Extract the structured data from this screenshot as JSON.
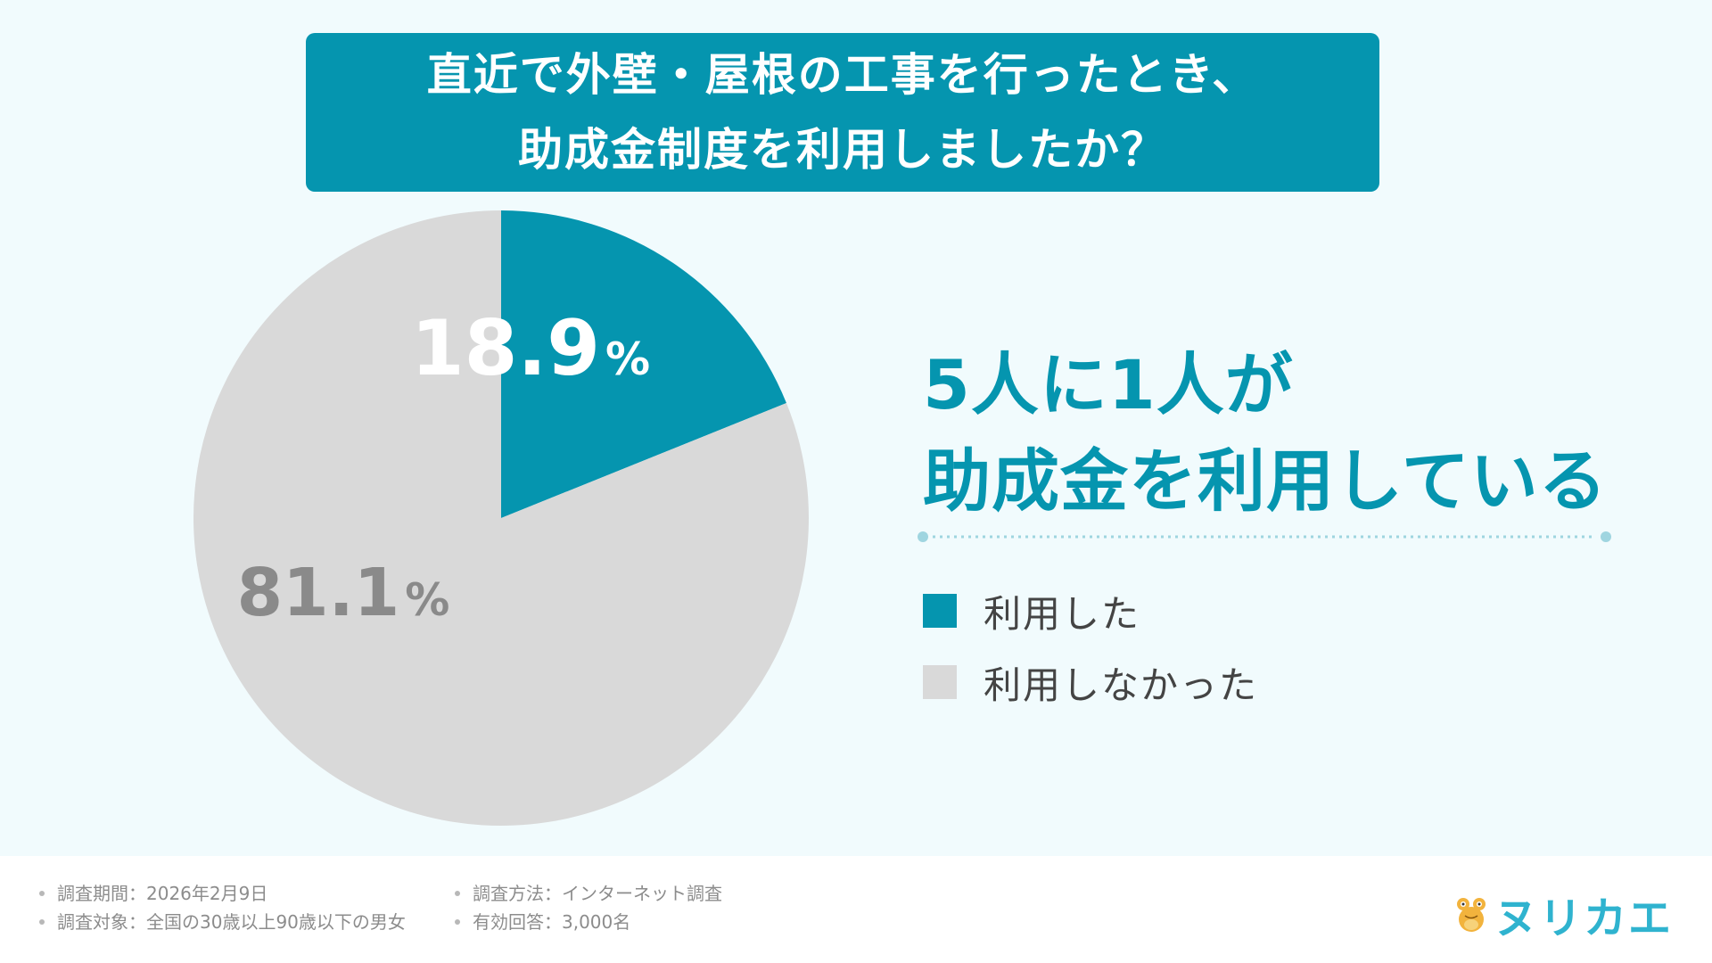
{
  "title": {
    "line1": "直近で外壁・屋根の工事を行ったとき、",
    "line2": "助成金制度を利用しましたか？"
  },
  "chart_data": {
    "type": "pie",
    "categories": [
      "利用した",
      "利用しなかった"
    ],
    "values": [
      18.9,
      81.1
    ],
    "unit": "%",
    "colors": [
      "#0595af",
      "#d9d9d9"
    ],
    "label_colors": [
      "#ffffff",
      "#8a8a8a"
    ],
    "start_angle": "12 o'clock, clockwise",
    "legend_position": "right"
  },
  "slice_labels": [
    {
      "value": "18.9",
      "unit": "%"
    },
    {
      "value": "81.1",
      "unit": "%"
    }
  ],
  "headline": {
    "line1": "5人に1人が",
    "line2": "助成金を利用している"
  },
  "legend": [
    {
      "label": "利用した",
      "color": "#0595af"
    },
    {
      "label": "利用しなかった",
      "color": "#d9d9d9"
    }
  ],
  "footer": {
    "notes_left": [
      "調査期間：2026年2月9日",
      "調査対象：全国の30歳以上90歳以下の男女"
    ],
    "notes_right": [
      "調査方法：インターネット調査",
      "有効回答：3,000名"
    ],
    "logo_text": "ヌリカエ",
    "logo_icon": "frog-mascot-icon"
  }
}
